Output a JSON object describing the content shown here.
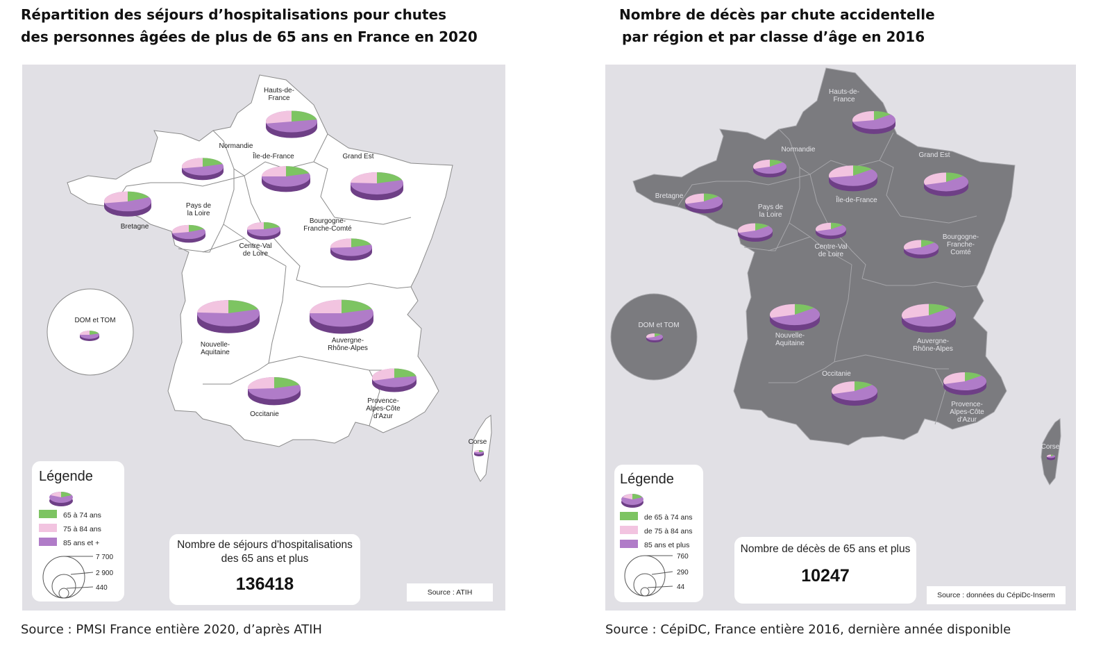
{
  "left": {
    "title_line1": "Répartition des séjours d’hospitalisations pour chutes",
    "title_line2": "des personnes âgées de plus de 65 ans en France en 2020",
    "bottom_source": "Source : PMSI France entière 2020, d’après ATIH",
    "legend": {
      "title": "Légende",
      "items": [
        "65 à 74 ans",
        "75 à 84 ans",
        "85 ans et +"
      ],
      "sizes": [
        "7 700",
        "2 900",
        "440"
      ]
    },
    "total": {
      "title_line1": "Nombre de séjours d'hospitalisations",
      "title_line2": "des 65 ans et plus",
      "value": "136418"
    },
    "source_card": "Source : ATIH",
    "regions": [
      {
        "label1": "Hauts-de-",
        "label2": "France"
      },
      {
        "label1": "Normandie",
        "label2": ""
      },
      {
        "label1": "Île-de-France",
        "label2": ""
      },
      {
        "label1": "Grand Est",
        "label2": ""
      },
      {
        "label1": "Bretagne",
        "label2": ""
      },
      {
        "label1": "Pays de",
        "label2": "la Loire"
      },
      {
        "label1": "Centre-Val",
        "label2": "de Loire"
      },
      {
        "label1": "Bourgogne-",
        "label2": "Franche-Comté"
      },
      {
        "label1": "Nouvelle-",
        "label2": "Aquitaine"
      },
      {
        "label1": "Auvergne-",
        "label2": "Rhône-Alpes"
      },
      {
        "label1": "Occitanie",
        "label2": ""
      },
      {
        "label1": "Provence-",
        "label2": "Alpes-Côte",
        "label3": "d'Azur"
      },
      {
        "label1": "Corse",
        "label2": ""
      },
      {
        "label1": "DOM et TOM",
        "label2": ""
      }
    ]
  },
  "right": {
    "title_line1": "Nombre de décès par chute accidentelle",
    "title_line2": "par région et par classe d’âge en 2016",
    "bottom_source": "Source : CépiDC, France entière 2016, dernière année disponible",
    "legend": {
      "title": "Légende",
      "items": [
        "de 65 à 74 ans",
        "de 75 à 84 ans",
        "85 ans et plus"
      ],
      "sizes": [
        "760",
        "290",
        "44"
      ]
    },
    "total": {
      "title_line1": "Nombre de décès de 65 ans et plus",
      "value": "10247"
    },
    "source_card": "Source : données du CépiDc-Inserm",
    "regions": [
      {
        "label1": "Hauts-de-",
        "label2": "France"
      },
      {
        "label1": "Normandie",
        "label2": ""
      },
      {
        "label1": "Île-de-France",
        "label2": ""
      },
      {
        "label1": "Grand Est",
        "label2": ""
      },
      {
        "label1": "Bretagne",
        "label2": ""
      },
      {
        "label1": "Pays de",
        "label2": "la Loire"
      },
      {
        "label1": "Centre-Val",
        "label2": "de Loire"
      },
      {
        "label1": "Bourgogne-",
        "label2": "Franche-",
        "label3": "Comté"
      },
      {
        "label1": "Nouvelle-",
        "label2": "Aquitaine"
      },
      {
        "label1": "Auvergne-",
        "label2": "Rhône-Alpes"
      },
      {
        "label1": "Occitanie",
        "label2": ""
      },
      {
        "label1": "Provence-",
        "label2": "Alpes-Côte",
        "label3": "d'Azur"
      },
      {
        "label1": "Corse",
        "label2": ""
      },
      {
        "label1": "DOM et TOM",
        "label2": ""
      }
    ]
  },
  "colors": {
    "green": "#7dc462",
    "pink": "#f2c4e0",
    "purple": "#b07cc8",
    "purple_dark": "#6e3f86",
    "map_bg": "#e1e0e5",
    "land_left": "#ffffff",
    "land_right": "#7b7b7f"
  }
}
